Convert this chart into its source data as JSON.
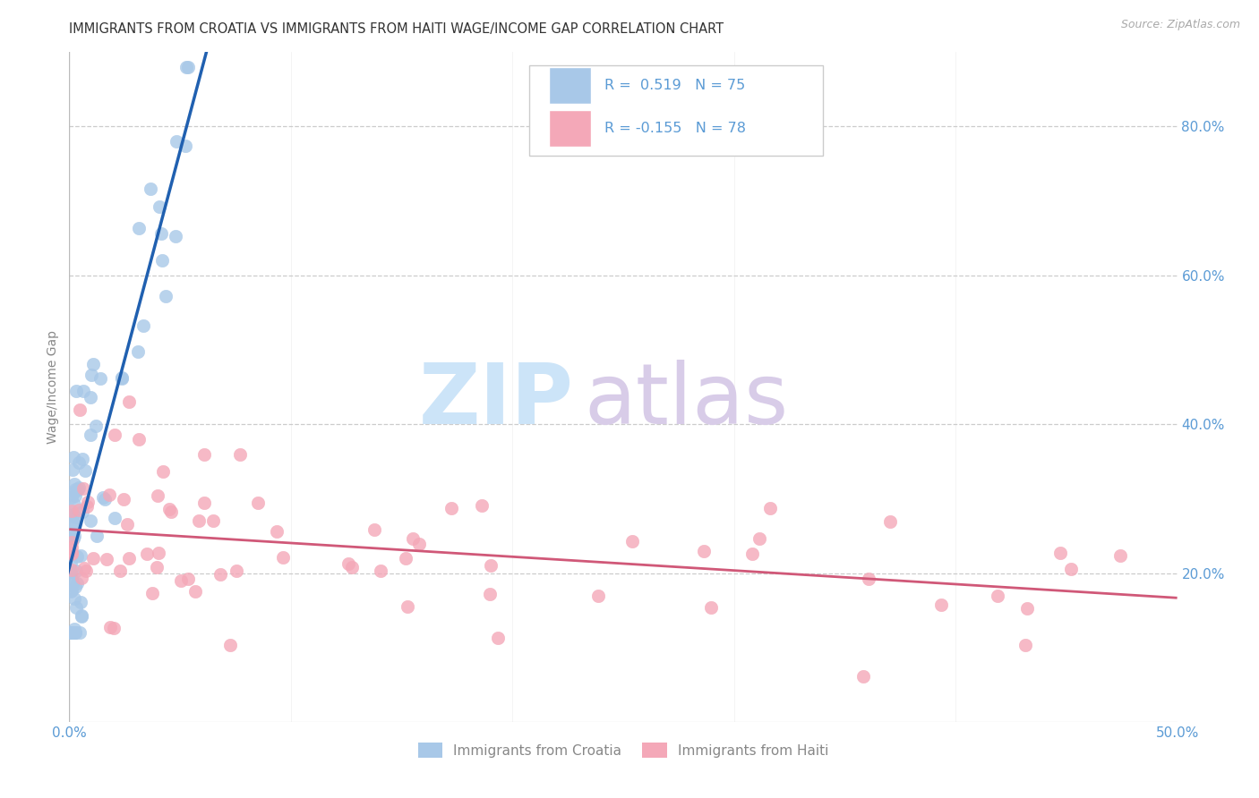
{
  "title": "IMMIGRANTS FROM CROATIA VS IMMIGRANTS FROM HAITI WAGE/INCOME GAP CORRELATION CHART",
  "source": "Source: ZipAtlas.com",
  "ylabel": "Wage/Income Gap",
  "legend_croatia": "Immigrants from Croatia",
  "legend_haiti": "Immigrants from Haiti",
  "R_croatia": 0.519,
  "N_croatia": 75,
  "R_haiti": -0.155,
  "N_haiti": 78,
  "color_croatia": "#a8c8e8",
  "color_haiti": "#f4a8b8",
  "line_croatia": "#2060b0",
  "line_haiti": "#d05878",
  "watermark_zip": "#cce4f8",
  "watermark_atlas": "#d8cce8",
  "background": "#ffffff",
  "xlim": [
    0.0,
    0.5
  ],
  "ylim": [
    0.0,
    0.9
  ],
  "ytick_vals": [
    0.2,
    0.4,
    0.6,
    0.8
  ],
  "ytick_labels": [
    "20.0%",
    "40.0%",
    "60.0%",
    "80.0%"
  ],
  "tick_color": "#5b9bd5",
  "grid_color": "#cccccc",
  "title_color": "#333333",
  "source_color": "#aaaaaa",
  "label_color": "#888888"
}
